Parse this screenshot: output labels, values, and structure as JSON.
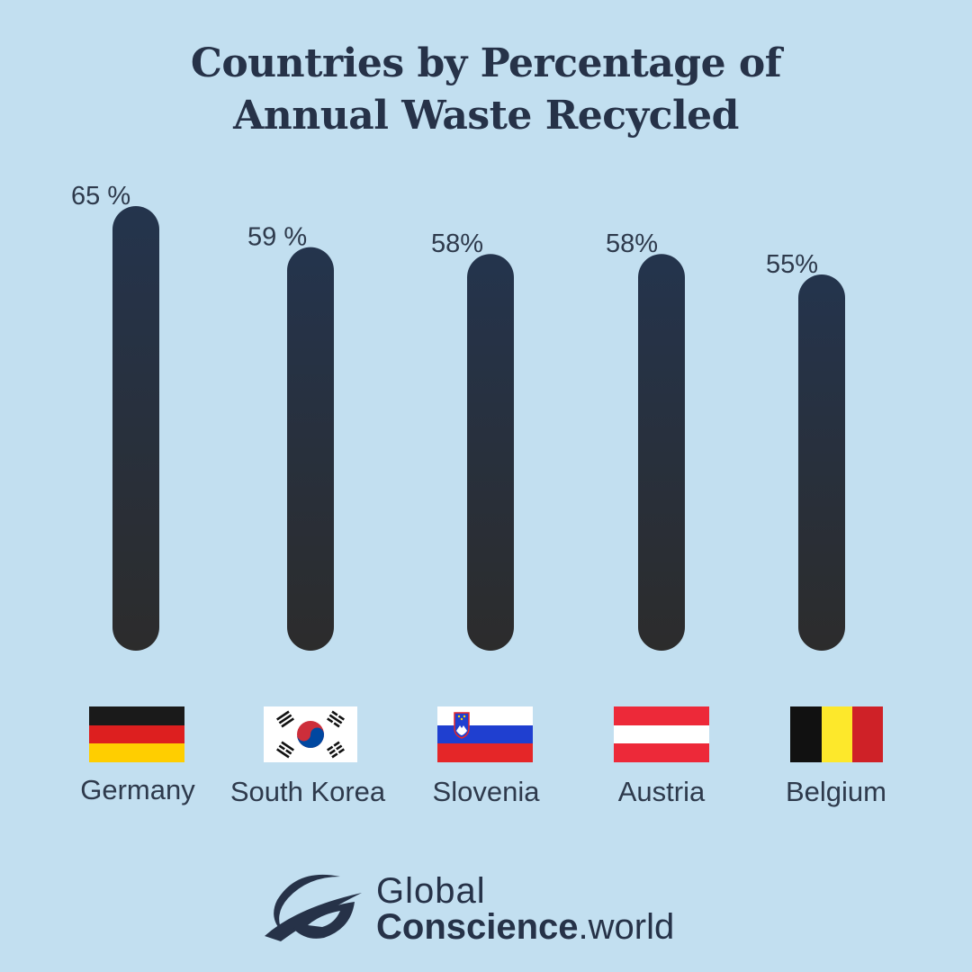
{
  "title": {
    "line1": "Countries by Percentage of",
    "line2": "Annual Waste Recycled"
  },
  "chart_data": {
    "type": "bar",
    "title": "Countries by Percentage of Annual Waste Recycled",
    "categories": [
      "Germany",
      "South Korea",
      "Slovenia",
      "Austria",
      "Belgium"
    ],
    "values": [
      65,
      59,
      58,
      58,
      55
    ],
    "value_labels": [
      "65 %",
      "59 %",
      "58%",
      "58%",
      "55%"
    ],
    "unit": "%",
    "xlabel": "",
    "ylabel": "",
    "ylim": [
      0,
      65
    ],
    "grid": false,
    "legend": "none",
    "bar_color_top": "#24344d",
    "bar_color_bottom": "#2c2c2c"
  },
  "flags": [
    {
      "country": "Germany",
      "icon": "germany-flag-icon"
    },
    {
      "country": "South Korea",
      "icon": "south-korea-flag-icon"
    },
    {
      "country": "Slovenia",
      "icon": "slovenia-flag-icon"
    },
    {
      "country": "Austria",
      "icon": "austria-flag-icon"
    },
    {
      "country": "Belgium",
      "icon": "belgium-flag-icon"
    }
  ],
  "logo": {
    "line1": "Global",
    "line2_bold": "Conscience",
    "line2_rest": ".world",
    "icon": "global-conscience-logo-icon"
  },
  "colors": {
    "background": "#c2dff0",
    "text": "#263248"
  }
}
